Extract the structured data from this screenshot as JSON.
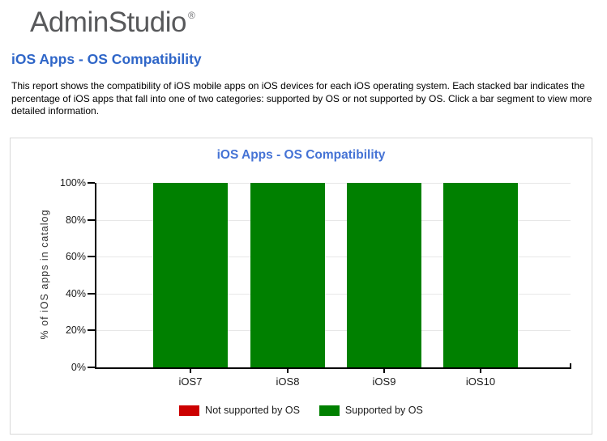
{
  "logo": {
    "text": "AdminStudio",
    "registered_mark": "®"
  },
  "page": {
    "title": "iOS Apps - OS Compatibility",
    "description": "This report shows the compatibility of iOS mobile apps on iOS devices for each iOS operating system. Each stacked bar indicates the percentage of iOS apps that fall into one of two categories: supported by OS or not supported by OS. Click a bar segment to view more detailed information."
  },
  "theme": {
    "logo_color": "#58595B",
    "heading_color": "#2F66C8",
    "chart_title_color": "#4573D5",
    "axis_color": "#000000",
    "grid_color": "#E7E7E7",
    "card_border_color": "#D8D8D8"
  },
  "chart_data": {
    "type": "bar",
    "subtype": "stacked-percent",
    "title": "iOS Apps - OS Compatibility",
    "categories": [
      "iOS7",
      "iOS8",
      "iOS9",
      "iOS10"
    ],
    "series": [
      {
        "name": "Not supported by OS",
        "color": "#CC0000",
        "values": [
          0,
          0,
          0,
          0
        ]
      },
      {
        "name": "Supported by OS",
        "color": "#008000",
        "values": [
          100,
          100,
          100,
          100
        ]
      }
    ],
    "xlabel": "",
    "ylabel": "% of iOS apps in catalog",
    "yticks": [
      "0%",
      "20%",
      "40%",
      "60%",
      "80%",
      "100%"
    ],
    "ylim": [
      0,
      100
    ],
    "grid": "horizontal",
    "legend_position": "bottom"
  }
}
